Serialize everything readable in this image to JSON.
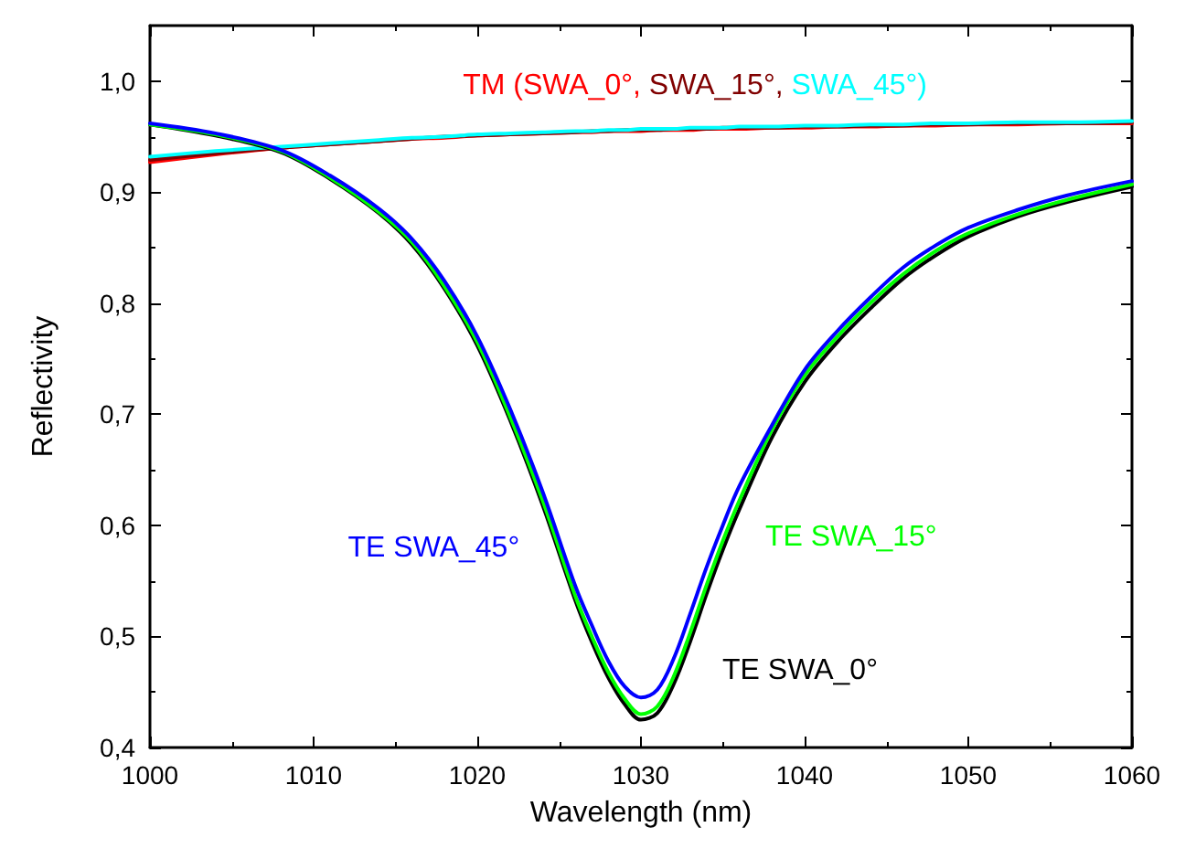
{
  "chart_data": {
    "type": "line",
    "xlabel": "Wavelength (nm)",
    "ylabel": "Reflectivity",
    "x": [
      1000,
      1004,
      1008,
      1011,
      1014,
      1016,
      1018,
      1020,
      1022,
      1024,
      1026,
      1027,
      1028,
      1029,
      1030,
      1031,
      1032,
      1033,
      1034,
      1035,
      1036,
      1038,
      1040,
      1042,
      1044,
      1046,
      1048,
      1050,
      1053,
      1056,
      1060
    ],
    "series": [
      {
        "color": "#ff0000",
        "values": [
          0.927,
          0.934,
          0.94,
          0.943,
          0.946,
          0.948,
          0.949,
          0.951,
          0.952,
          0.953,
          0.954,
          0.954,
          0.955,
          0.955,
          0.955,
          0.956,
          0.956,
          0.956,
          0.957,
          0.957,
          0.957,
          0.958,
          0.958,
          0.959,
          0.959,
          0.96,
          0.96,
          0.961,
          0.961,
          0.962,
          0.962
        ]
      },
      {
        "color": "#800000",
        "values": [
          0.929,
          0.935,
          0.94,
          0.943,
          0.946,
          0.948,
          0.95,
          0.951,
          0.952,
          0.953,
          0.954,
          0.955,
          0.955,
          0.956,
          0.956,
          0.956,
          0.957,
          0.957,
          0.957,
          0.958,
          0.958,
          0.958,
          0.959,
          0.959,
          0.96,
          0.96,
          0.961,
          0.961,
          0.962,
          0.962,
          0.963
        ]
      },
      {
        "color": "#00ffff",
        "values": [
          0.932,
          0.937,
          0.941,
          0.944,
          0.947,
          0.949,
          0.95,
          0.952,
          0.953,
          0.954,
          0.955,
          0.955,
          0.956,
          0.956,
          0.957,
          0.957,
          0.957,
          0.958,
          0.958,
          0.958,
          0.959,
          0.959,
          0.96,
          0.96,
          0.961,
          0.961,
          0.962,
          0.962,
          0.963,
          0.963,
          0.964
        ]
      },
      {
        "name": "TE SWA_0°",
        "color": "#000000",
        "values": [
          0.961,
          0.951,
          0.936,
          0.912,
          0.881,
          0.853,
          0.813,
          0.762,
          0.695,
          0.618,
          0.532,
          0.495,
          0.463,
          0.439,
          0.425,
          0.431,
          0.457,
          0.495,
          0.538,
          0.578,
          0.614,
          0.679,
          0.729,
          0.765,
          0.795,
          0.822,
          0.843,
          0.86,
          0.878,
          0.891,
          0.905
        ]
      },
      {
        "name": "TE SWA_15°",
        "color": "#00ff00",
        "values": [
          0.961,
          0.952,
          0.937,
          0.913,
          0.882,
          0.855,
          0.815,
          0.765,
          0.698,
          0.622,
          0.536,
          0.5,
          0.468,
          0.444,
          0.43,
          0.437,
          0.464,
          0.503,
          0.546,
          0.586,
          0.622,
          0.686,
          0.735,
          0.77,
          0.8,
          0.826,
          0.847,
          0.863,
          0.88,
          0.893,
          0.907
        ]
      },
      {
        "name": "TE SWA_45°",
        "color": "#0000ff",
        "values": [
          0.962,
          0.953,
          0.938,
          0.915,
          0.885,
          0.858,
          0.82,
          0.77,
          0.705,
          0.63,
          0.545,
          0.51,
          0.478,
          0.455,
          0.445,
          0.452,
          0.48,
          0.52,
          0.562,
          0.6,
          0.635,
          0.69,
          0.74,
          0.775,
          0.805,
          0.832,
          0.852,
          0.868,
          0.884,
          0.897,
          0.91
        ]
      }
    ],
    "annotations": [
      "TM (SWA_0°, SWA_15°, SWA_45°)"
    ],
    "xlim": [
      1000,
      1060
    ],
    "xticks": [
      1000,
      1010,
      1020,
      1030,
      1040,
      1050,
      1060
    ],
    "ylim": [
      0.4,
      1.05
    ],
    "yticks": [
      {
        "value": 0.4,
        "label": "0,4"
      },
      {
        "value": 0.5,
        "label": "0,5"
      },
      {
        "value": 0.6,
        "label": "0,6"
      },
      {
        "value": 0.7,
        "label": "0,7"
      },
      {
        "value": 0.8,
        "label": "0,8"
      },
      {
        "value": 0.9,
        "label": "0,9"
      },
      {
        "value": 1.0,
        "label": "1,0"
      }
    ],
    "grid": false,
    "marker": "none",
    "line_style": "solid"
  }
}
